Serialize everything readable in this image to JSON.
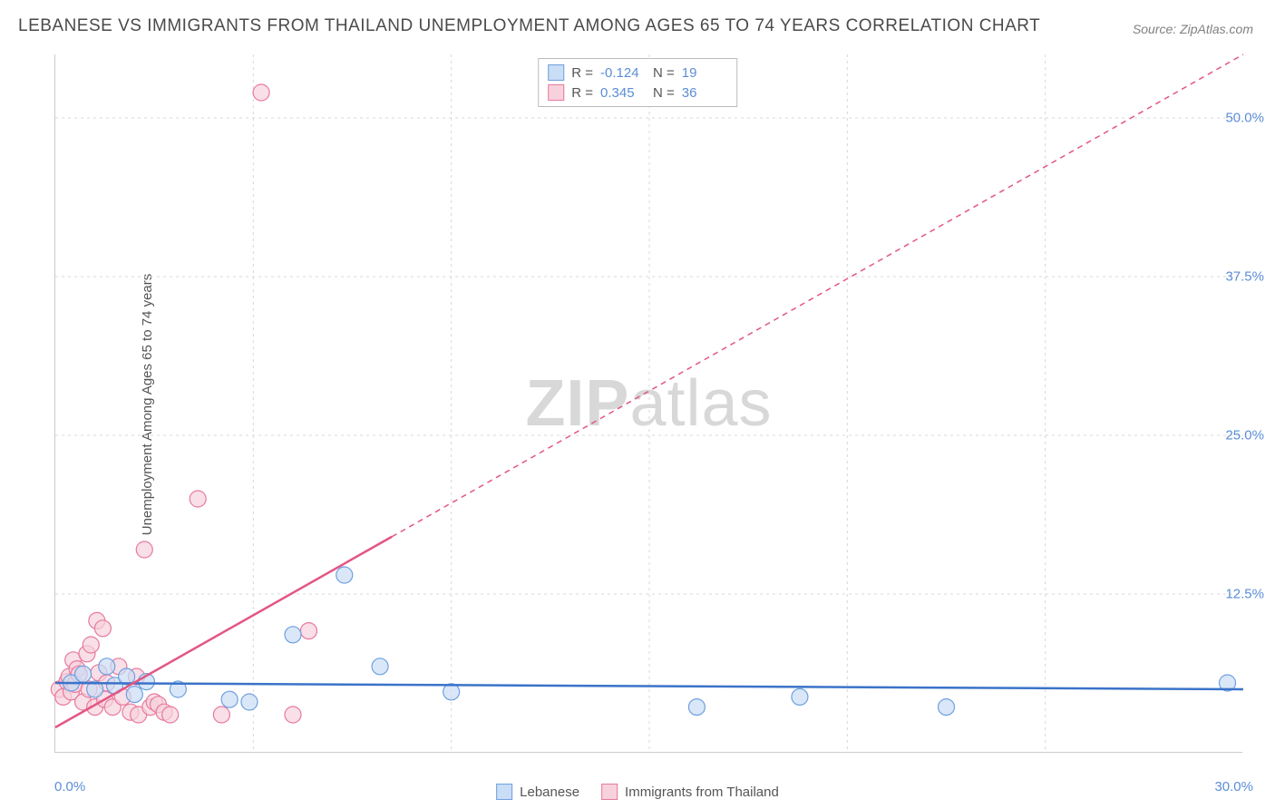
{
  "title": "LEBANESE VS IMMIGRANTS FROM THAILAND UNEMPLOYMENT AMONG AGES 65 TO 74 YEARS CORRELATION CHART",
  "source": "Source: ZipAtlas.com",
  "y_axis_label": "Unemployment Among Ages 65 to 74 years",
  "watermark_a": "ZIP",
  "watermark_b": "atlas",
  "chart": {
    "type": "scatter",
    "background_color": "#ffffff",
    "grid_color": "#d8d8d8",
    "axis_color": "#cccccc",
    "tick_color": "#5b8dd6",
    "x_range": [
      0,
      30
    ],
    "y_range": [
      0,
      55
    ],
    "x_ticks": [
      "0.0%",
      "30.0%"
    ],
    "y_ticks": [
      {
        "v": 12.5,
        "label": "12.5%"
      },
      {
        "v": 25.0,
        "label": "25.0%"
      },
      {
        "v": 37.5,
        "label": "37.5%"
      },
      {
        "v": 50.0,
        "label": "50.0%"
      }
    ],
    "x_gridlines": [
      5,
      10,
      15,
      20,
      25
    ],
    "series": [
      {
        "name": "Lebanese",
        "color_fill": "#c9ddf5",
        "color_stroke": "#6fa0df",
        "line_color": "#3b73c9",
        "marker_radius": 9,
        "r_label": "R = ",
        "r_value": "-0.124",
        "n_label": "N = ",
        "n_value": "19",
        "regression": {
          "x1": 0,
          "y1": 5.5,
          "x2": 30,
          "y2": 5.0,
          "solid_until_x": 30
        },
        "points": [
          [
            0.4,
            5.5
          ],
          [
            0.7,
            6.2
          ],
          [
            1.0,
            5.0
          ],
          [
            1.3,
            6.8
          ],
          [
            1.5,
            5.3
          ],
          [
            1.8,
            6.0
          ],
          [
            2.3,
            5.6
          ],
          [
            4.4,
            4.2
          ],
          [
            4.9,
            4.0
          ],
          [
            6.0,
            9.3
          ],
          [
            7.3,
            14.0
          ],
          [
            8.2,
            6.8
          ],
          [
            10.0,
            4.8
          ],
          [
            16.2,
            3.6
          ],
          [
            18.8,
            4.4
          ],
          [
            22.5,
            3.6
          ],
          [
            29.6,
            5.5
          ],
          [
            2.0,
            4.6
          ],
          [
            3.1,
            5.0
          ]
        ]
      },
      {
        "name": "Immigrants from Thailand",
        "color_fill": "#f7d2dd",
        "color_stroke": "#e77a9c",
        "line_color": "#e35684",
        "marker_radius": 9,
        "r_label": "R = ",
        "r_value": "0.345",
        "n_label": "N = ",
        "n_value": "36",
        "regression": {
          "x1": 0,
          "y1": 2.0,
          "x2": 30,
          "y2": 55.0,
          "solid_until_x": 8.5
        },
        "points": [
          [
            0.1,
            5.0
          ],
          [
            0.2,
            4.4
          ],
          [
            0.3,
            5.6
          ],
          [
            0.35,
            6.0
          ],
          [
            0.4,
            4.8
          ],
          [
            0.45,
            7.3
          ],
          [
            0.5,
            5.4
          ],
          [
            0.55,
            6.6
          ],
          [
            0.6,
            6.2
          ],
          [
            0.7,
            4.0
          ],
          [
            0.8,
            7.8
          ],
          [
            0.85,
            5.0
          ],
          [
            0.9,
            8.5
          ],
          [
            1.0,
            3.6
          ],
          [
            1.05,
            10.4
          ],
          [
            1.1,
            6.3
          ],
          [
            1.2,
            9.8
          ],
          [
            1.25,
            4.2
          ],
          [
            1.3,
            5.5
          ],
          [
            1.45,
            3.6
          ],
          [
            1.6,
            6.8
          ],
          [
            1.7,
            4.4
          ],
          [
            1.9,
            3.2
          ],
          [
            2.05,
            6.0
          ],
          [
            2.1,
            3.0
          ],
          [
            2.25,
            16.0
          ],
          [
            2.4,
            3.6
          ],
          [
            2.5,
            4.0
          ],
          [
            2.6,
            3.8
          ],
          [
            2.75,
            3.2
          ],
          [
            2.9,
            3.0
          ],
          [
            3.6,
            20.0
          ],
          [
            4.2,
            3.0
          ],
          [
            5.2,
            52.0
          ],
          [
            6.0,
            3.0
          ],
          [
            6.4,
            9.6
          ]
        ]
      }
    ]
  },
  "legend_bottom": [
    {
      "label": "Lebanese",
      "fill": "#c9ddf5",
      "stroke": "#6fa0df"
    },
    {
      "label": "Immigrants from Thailand",
      "fill": "#f7d2dd",
      "stroke": "#e77a9c"
    }
  ]
}
